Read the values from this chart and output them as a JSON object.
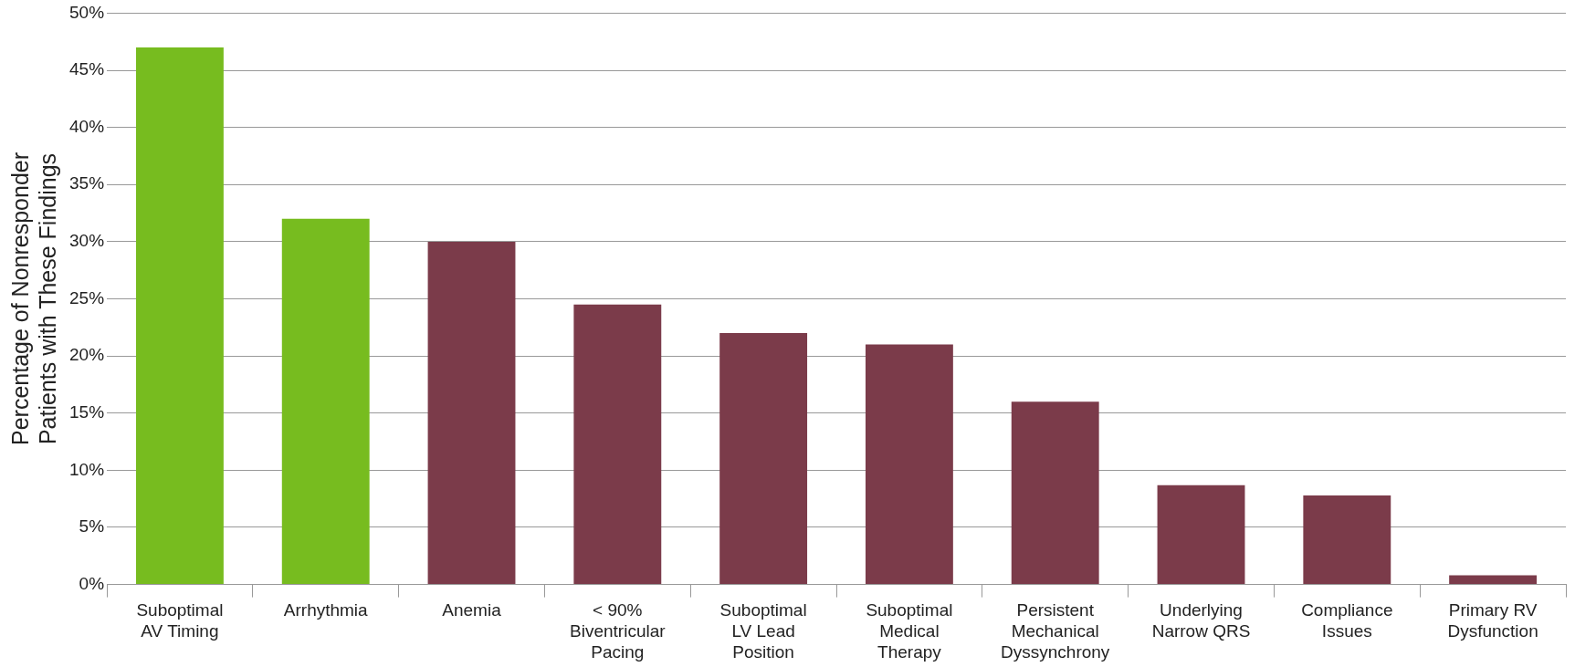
{
  "chart_data": {
    "type": "bar",
    "ylabel": "Percentage of Nonresponder Patients with These Findings",
    "categories": [
      "Suboptimal AV Timing",
      "Arrhythmia",
      "Anemia",
      "< 90% Biventricular Pacing",
      "Suboptimal LV Lead Position",
      "Suboptimal Medical Therapy",
      "Persistent Mechanical Dyssynchrony",
      "Underlying Narrow QRS",
      "Compliance Issues",
      "Primary RV Dysfunction"
    ],
    "values": [
      47,
      32,
      30,
      24.5,
      22,
      21,
      16,
      8.7,
      7.8,
      0.8
    ],
    "colors": [
      "#77bc1f",
      "#77bc1f",
      "#7b3b4a",
      "#7b3b4a",
      "#7b3b4a",
      "#7b3b4a",
      "#7b3b4a",
      "#7b3b4a",
      "#7b3b4a",
      "#7b3b4a"
    ],
    "ylim": [
      0,
      50
    ],
    "yticks": [
      {
        "value": 0,
        "label": "0%"
      },
      {
        "value": 5,
        "label": "5%"
      },
      {
        "value": 10,
        "label": "10%"
      },
      {
        "value": 15,
        "label": "15%"
      },
      {
        "value": 20,
        "label": "20%"
      },
      {
        "value": 25,
        "label": "25%"
      },
      {
        "value": 30,
        "label": "30%"
      },
      {
        "value": 35,
        "label": "35%"
      },
      {
        "value": 40,
        "label": "40%"
      },
      {
        "value": 45,
        "label": "45%"
      },
      {
        "value": 50,
        "label": "50%"
      }
    ],
    "grid": "y",
    "legend": false
  }
}
